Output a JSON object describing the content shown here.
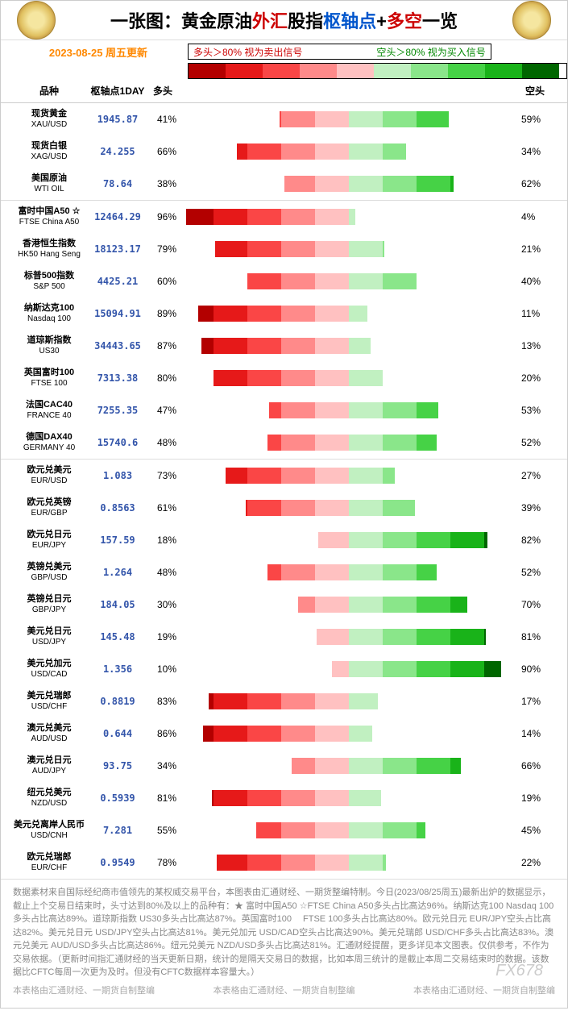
{
  "title": {
    "prefix": "一张图：",
    "gold_oil": "黄金原油",
    "forex": "外汇",
    "index": "股指",
    "pivot": "枢轴点",
    "plus": "+",
    "longshort": "多空",
    "suffix": "一览"
  },
  "date": "2023-08-25",
  "update": "周五更新",
  "legend": {
    "long_signal": "多头＞80% 视为卖出信号",
    "short_signal": "空头＞80% 视为买入信号"
  },
  "headers": {
    "name": "品种",
    "pivot": "枢轴点1DAY",
    "long": "多头",
    "short": "空头"
  },
  "colors": {
    "long_scale": [
      "#b30000",
      "#e61919",
      "#fa4646",
      "#ff8a8a",
      "#ffc1c1"
    ],
    "short_scale": [
      "#c1f0c1",
      "#8ae68a",
      "#46d246",
      "#19b319",
      "#006600"
    ],
    "pivot_text": "#3355aa",
    "date_text": "#ff8800",
    "border": "#cccccc"
  },
  "groups": [
    {
      "rows": [
        {
          "cn": "现货黄金",
          "en": "XAU/USD",
          "pivot": "1945.87",
          "long": 41,
          "short": 59
        },
        {
          "cn": "现货白银",
          "en": "XAG/USD",
          "pivot": "24.255",
          "long": 66,
          "short": 34
        },
        {
          "cn": "美国原油",
          "en": "WTI OIL",
          "pivot": "78.64",
          "long": 38,
          "short": 62
        }
      ]
    },
    {
      "rows": [
        {
          "cn": "富时中国A50 ☆",
          "en": "FTSE China A50",
          "pivot": "12464.29",
          "long": 96,
          "short": 4
        },
        {
          "cn": "香港恒生指数",
          "en": "HK50 Hang Seng",
          "pivot": "18123.17",
          "long": 79,
          "short": 21
        },
        {
          "cn": "标普500指数",
          "en": "S&P 500",
          "pivot": "4425.21",
          "long": 60,
          "short": 40
        },
        {
          "cn": "纳斯达克100",
          "en": "Nasdaq 100",
          "pivot": "15094.91",
          "long": 89,
          "short": 11
        },
        {
          "cn": "道琼斯指数",
          "en": "US30",
          "pivot": "34443.65",
          "long": 87,
          "short": 13
        },
        {
          "cn": "英国富时100",
          "en": "FTSE 100",
          "pivot": "7313.38",
          "long": 80,
          "short": 20
        },
        {
          "cn": "法国CAC40",
          "en": "FRANCE 40",
          "pivot": "7255.35",
          "long": 47,
          "short": 53
        },
        {
          "cn": "德国DAX40",
          "en": "GERMANY 40",
          "pivot": "15740.6",
          "long": 48,
          "short": 52
        }
      ]
    },
    {
      "rows": [
        {
          "cn": "欧元兑美元",
          "en": "EUR/USD",
          "pivot": "1.083",
          "long": 73,
          "short": 27
        },
        {
          "cn": "欧元兑英镑",
          "en": "EUR/GBP",
          "pivot": "0.8563",
          "long": 61,
          "short": 39
        },
        {
          "cn": "欧元兑日元",
          "en": "EUR/JPY",
          "pivot": "157.59",
          "long": 18,
          "short": 82
        },
        {
          "cn": "英镑兑美元",
          "en": "GBP/USD",
          "pivot": "1.264",
          "long": 48,
          "short": 52
        },
        {
          "cn": "英镑兑日元",
          "en": "GBP/JPY",
          "pivot": "184.05",
          "long": 30,
          "short": 70
        },
        {
          "cn": "美元兑日元",
          "en": "USD/JPY",
          "pivot": "145.48",
          "long": 19,
          "short": 81
        },
        {
          "cn": "美元兑加元",
          "en": "USD/CAD",
          "pivot": "1.356",
          "long": 10,
          "short": 90
        },
        {
          "cn": "美元兑瑞郎",
          "en": "USD/CHF",
          "pivot": "0.8819",
          "long": 83,
          "short": 17
        },
        {
          "cn": "澳元兑美元",
          "en": "AUD/USD",
          "pivot": "0.644",
          "long": 86,
          "short": 14
        },
        {
          "cn": "澳元兑日元",
          "en": "AUD/JPY",
          "pivot": "93.75",
          "long": 34,
          "short": 66
        },
        {
          "cn": "纽元兑美元",
          "en": "NZD/USD",
          "pivot": "0.5939",
          "long": 81,
          "short": 19
        },
        {
          "cn": "美元兑离岸人民币",
          "en": "USD/CNH",
          "pivot": "7.281",
          "long": 55,
          "short": 45
        },
        {
          "cn": "欧元兑瑞郎",
          "en": "EUR/CHF",
          "pivot": "0.9549",
          "long": 78,
          "short": 22
        }
      ]
    }
  ],
  "footer": "数据素材来自国际经纪商市值领先的某权威交易平台，本图表由汇通财经、一期货整编特制。今日(2023/08/25周五)最新出炉的数据显示，截止上个交易日结束时，头寸达到80%及以上的品种有：★ 富时中国A50 ☆FTSE China A50多头占比高达96%。纳斯达克100 Nasdaq 100多头占比高达89%。道琼斯指数 US30多头占比高达87%。英国富时100　 FTSE 100多头占比高达80%。欧元兑日元 EUR/JPY空头占比高达82%。美元兑日元 USD/JPY空头占比高达81%。美元兑加元 USD/CAD空头占比高达90%。美元兑瑞郎 USD/CHF多头占比高达83%。澳元兑美元 AUD/USD多头占比高达86%。纽元兑美元 NZD/USD多头占比高达81%。汇通财经提醒，更多详见本文图表。仅供参考，不作为交易依据。（更新时间指汇通财经的当天更新日期，统计的是隔天交易日的数据，比如本周三统计的是截止本周二交易结束时的数据。该数据比CFTC每周一次更为及时。但没有CFTC数据样本容量大。）",
  "credits": "本表格由汇通财经、一期货自制整编",
  "watermark": "FX678"
}
